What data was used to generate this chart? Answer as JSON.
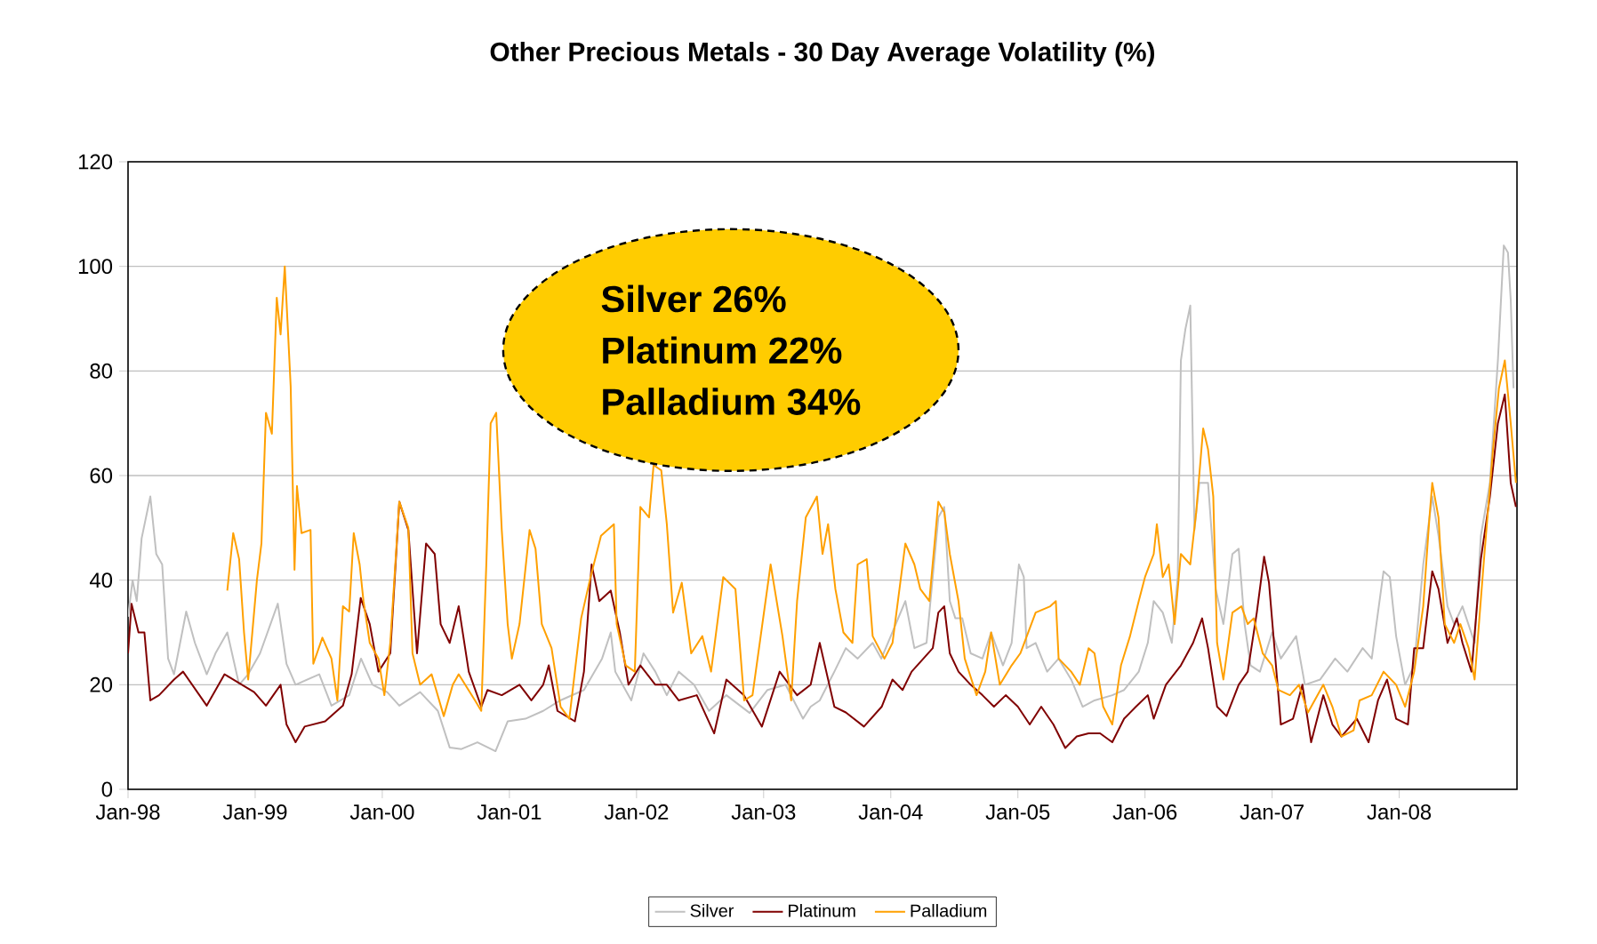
{
  "chart_data": {
    "type": "line",
    "title": "Other Precious Metals - 30 Day Average Volatility (%)",
    "annotations": [
      "Silver 26%",
      "Platinum 22%",
      "Palladium 34%"
    ],
    "ylim": [
      0,
      120
    ],
    "yticks": [
      0,
      20,
      40,
      60,
      80,
      100,
      120
    ],
    "xlim": [
      "1998-01-01",
      "2008-12-05"
    ],
    "xticks": [
      {
        "value": "1998-01-01",
        "label": "Jan-98"
      },
      {
        "value": "1999-01-01",
        "label": "Jan-99"
      },
      {
        "value": "2000-01-01",
        "label": "Jan-00"
      },
      {
        "value": "2001-01-01",
        "label": "Jan-01"
      },
      {
        "value": "2002-01-01",
        "label": "Jan-02"
      },
      {
        "value": "2003-01-01",
        "label": "Jan-03"
      },
      {
        "value": "2004-01-01",
        "label": "Jan-04"
      },
      {
        "value": "2005-01-01",
        "label": "Jan-05"
      },
      {
        "value": "2006-01-01",
        "label": "Jan-06"
      },
      {
        "value": "2007-01-01",
        "label": "Jan-07"
      },
      {
        "value": "2008-01-01",
        "label": "Jan-08"
      }
    ],
    "grid": "y",
    "legend": "bottom",
    "series": [
      {
        "name": "Silver",
        "color": "#c0c0c0",
        "x": [
          "1998-01-01",
          "1998-01-14",
          "1998-01-26",
          "1998-02-09",
          "1998-03-06",
          "1998-03-23",
          "1998-04-09",
          "1998-04-26",
          "1998-05-13",
          "1998-06-17",
          "1998-07-12",
          "1998-08-15",
          "1998-09-09",
          "1998-10-13",
          "1998-11-16",
          "1998-12-12",
          "1999-01-15",
          "1999-03-07",
          "1999-04-01",
          "1999-04-27",
          "1999-07-04",
          "1999-08-08",
          "1999-09-28",
          "1999-11-01",
          "1999-12-04",
          "2000-01-15",
          "2000-02-19",
          "2000-04-19",
          "2000-06-09",
          "2000-07-13",
          "2000-08-16",
          "2000-10-01",
          "2000-11-22",
          "2000-12-27",
          "2001-02-16",
          "2001-04-08",
          "2001-05-27",
          "2001-08-03",
          "2001-09-24",
          "2001-10-19",
          "2001-11-01",
          "2001-12-17",
          "2002-01-21",
          "2002-02-24",
          "2002-03-29",
          "2002-05-02",
          "2002-06-15",
          "2002-07-28",
          "2002-09-16",
          "2002-11-22",
          "2003-01-12",
          "2003-03-05",
          "2003-04-24",
          "2003-05-16",
          "2003-06-11",
          "2003-07-23",
          "2003-08-25",
          "2003-09-28",
          "2003-11-10",
          "2003-12-05",
          "2004-01-01",
          "2004-02-12",
          "2004-03-09",
          "2004-04-13",
          "2004-05-17",
          "2004-06-03",
          "2004-06-19",
          "2004-07-05",
          "2004-07-25",
          "2004-08-18",
          "2004-09-21",
          "2004-10-16",
          "2004-11-19",
          "2004-12-14",
          "2005-01-04",
          "2005-01-18",
          "2005-01-26",
          "2005-02-21",
          "2005-03-26",
          "2005-04-28",
          "2005-06-03",
          "2005-07-06",
          "2005-08-09",
          "2005-09-29",
          "2005-11-02",
          "2005-12-14",
          "2006-01-09",
          "2006-01-26",
          "2006-02-21",
          "2006-03-19",
          "2006-04-05",
          "2006-04-14",
          "2006-04-27",
          "2006-05-11",
          "2006-05-23",
          "2006-06-06",
          "2006-07-01",
          "2006-07-23",
          "2006-08-14",
          "2006-09-09",
          "2006-09-27",
          "2006-10-14",
          "2006-10-31",
          "2006-11-27",
          "2007-01-01",
          "2007-01-26",
          "2007-03-11",
          "2007-04-05",
          "2007-05-19",
          "2007-07-01",
          "2007-08-05",
          "2007-09-18",
          "2007-10-14",
          "2007-11-17",
          "2007-12-05",
          "2007-12-23",
          "2008-01-18",
          "2008-02-13",
          "2008-03-10",
          "2008-04-05",
          "2008-04-23",
          "2008-05-19",
          "2008-06-07",
          "2008-07-01",
          "2008-08-05",
          "2008-08-23",
          "2008-09-18",
          "2008-10-11",
          "2008-10-28",
          "2008-11-09",
          "2008-11-17",
          "2008-11-25"
        ],
        "values": [
          33,
          40,
          36,
          48,
          56,
          45,
          43,
          25,
          22,
          34,
          28,
          22,
          26,
          30,
          20,
          22,
          26,
          35.5,
          24,
          20,
          22,
          16,
          18,
          25,
          20,
          18.6,
          16,
          18.6,
          15,
          8,
          7.7,
          9,
          7.3,
          13,
          13.5,
          15,
          17,
          19,
          25,
          30,
          22.5,
          17,
          26,
          22.5,
          18,
          22.5,
          20,
          15,
          18,
          14.6,
          19,
          20,
          13.5,
          15.8,
          17,
          22.5,
          27,
          25,
          28,
          25,
          29.3,
          36,
          27,
          28,
          52,
          54,
          36,
          32.7,
          32.7,
          26,
          25,
          30,
          23.7,
          28,
          43,
          40.6,
          27,
          28,
          22.5,
          25,
          21,
          15.8,
          17,
          18,
          19,
          22.5,
          28,
          36,
          33.8,
          28,
          40.6,
          82,
          88,
          92.5,
          49.6,
          58.6,
          58.6,
          38.3,
          31.6,
          45,
          46,
          31.6,
          23.7,
          22.5,
          30,
          25,
          29.3,
          20,
          21,
          25,
          22.5,
          27,
          25,
          41.7,
          40.6,
          29.3,
          20,
          23.7,
          43,
          56,
          48.5,
          35,
          31.6,
          35,
          28,
          48.5,
          58.6,
          82,
          104,
          102.6,
          93.6,
          76.7
        ]
      },
      {
        "name": "Platinum",
        "color": "#800000",
        "x": [
          "1998-01-01",
          "1998-01-11",
          "1998-01-31",
          "1998-02-17",
          "1998-03-06",
          "1998-03-31",
          "1998-05-13",
          "1998-06-08",
          "1998-08-15",
          "1998-10-05",
          "1998-11-24",
          "1998-12-29",
          "1999-02-01",
          "1999-03-15",
          "1999-04-01",
          "1999-04-27",
          "1999-05-23",
          "1999-07-21",
          "1999-09-10",
          "1999-10-05",
          "1999-10-31",
          "1999-11-26",
          "1999-12-21",
          "2000-01-24",
          "2000-02-19",
          "2000-03-16",
          "2000-04-10",
          "2000-05-06",
          "2000-05-31",
          "2000-06-17",
          "2000-07-13",
          "2000-08-08",
          "2000-09-06",
          "2000-10-12",
          "2000-10-30",
          "2000-12-10",
          "2001-01-30",
          "2001-03-05",
          "2001-04-08",
          "2001-04-24",
          "2001-05-19",
          "2001-07-08",
          "2001-08-03",
          "2001-08-25",
          "2001-09-16",
          "2001-10-19",
          "2001-11-14",
          "2001-12-09",
          "2002-01-12",
          "2002-02-24",
          "2002-03-29",
          "2002-05-02",
          "2002-06-23",
          "2002-08-12",
          "2002-09-16",
          "2002-11-05",
          "2002-12-27",
          "2003-02-16",
          "2003-04-07",
          "2003-05-16",
          "2003-06-11",
          "2003-07-23",
          "2003-08-25",
          "2003-10-16",
          "2003-12-06",
          "2004-01-06",
          "2004-02-04",
          "2004-03-01",
          "2004-04-04",
          "2004-05-01",
          "2004-05-17",
          "2004-06-03",
          "2004-06-19",
          "2004-07-14",
          "2004-08-18",
          "2004-09-21",
          "2004-10-24",
          "2004-11-27",
          "2005-01-01",
          "2005-02-04",
          "2005-03-09",
          "2005-04-13",
          "2005-05-17",
          "2005-06-19",
          "2005-07-23",
          "2005-08-25",
          "2005-09-29",
          "2005-11-02",
          "2005-12-06",
          "2006-01-09",
          "2006-01-26",
          "2006-03-02",
          "2006-04-14",
          "2006-05-19",
          "2006-06-14",
          "2006-07-01",
          "2006-07-27",
          "2006-08-23",
          "2006-09-27",
          "2006-10-23",
          "2006-11-18",
          "2006-12-09",
          "2006-12-23",
          "2007-01-09",
          "2007-01-26",
          "2007-03-02",
          "2007-03-29",
          "2007-04-23",
          "2007-05-28",
          "2007-06-23",
          "2007-07-19",
          "2007-09-01",
          "2007-10-05",
          "2007-11-01",
          "2007-11-27",
          "2007-12-23",
          "2008-01-26",
          "2008-02-13",
          "2008-03-10",
          "2008-04-05",
          "2008-04-23",
          "2008-05-19",
          "2008-06-15",
          "2008-07-01",
          "2008-07-27",
          "2008-08-23",
          "2008-09-18",
          "2008-10-11",
          "2008-10-31",
          "2008-11-17",
          "2008-12-02"
        ],
        "values": [
          26,
          35.5,
          30,
          30,
          17,
          18,
          21,
          22.5,
          16,
          22,
          20,
          18.6,
          16,
          20,
          12.4,
          9,
          12,
          13,
          16,
          22,
          36.6,
          31.6,
          22.5,
          26,
          55,
          49.6,
          26,
          47,
          45,
          31.6,
          28,
          35,
          22.5,
          15.8,
          19,
          18,
          20,
          17,
          20,
          23.7,
          15,
          13,
          22.5,
          43,
          36,
          38,
          30,
          20,
          23.7,
          20,
          20,
          17,
          18,
          10.7,
          21,
          18,
          12,
          22.5,
          18,
          20,
          28,
          15.8,
          14.7,
          12,
          15.8,
          21,
          19,
          22.5,
          25,
          27,
          33.8,
          35,
          26,
          22.5,
          20,
          18,
          15.8,
          18,
          15.8,
          12.4,
          15.8,
          12.4,
          7.9,
          10.1,
          10.7,
          10.7,
          9,
          13.5,
          15.8,
          18,
          13.5,
          20,
          23.7,
          28,
          32.7,
          27,
          15.8,
          14,
          20,
          22.5,
          33.8,
          44.5,
          39.5,
          26,
          12.4,
          13.5,
          20,
          9,
          18,
          12.4,
          10.1,
          13.5,
          9,
          17,
          21,
          13.5,
          12.4,
          27,
          27,
          41.7,
          38.3,
          28,
          32.7,
          28,
          22.5,
          44,
          56,
          70,
          75.5,
          58.6,
          54
        ]
      },
      {
        "name": "Palladium",
        "color": "#ffa000",
        "x": [
          "1998-10-13",
          "1998-10-30",
          "1998-11-16",
          "1998-11-30",
          "1998-12-12",
          "1999-01-06",
          "1999-01-19",
          "1999-02-01",
          "1999-02-18",
          "1999-03-04",
          "1999-03-15",
          "1999-03-27",
          "1999-04-13",
          "1999-04-24",
          "1999-05-01",
          "1999-05-14",
          "1999-06-09",
          "1999-06-17",
          "1999-07-13",
          "1999-08-08",
          "1999-08-25",
          "1999-09-10",
          "1999-09-28",
          "1999-10-11",
          "1999-10-28",
          "1999-11-08",
          "1999-11-26",
          "1999-12-21",
          "2000-01-07",
          "2000-01-24",
          "2000-02-19",
          "2000-03-16",
          "2000-03-28",
          "2000-04-19",
          "2000-05-22",
          "2000-06-26",
          "2000-07-22",
          "2000-08-08",
          "2000-09-24",
          "2000-10-12",
          "2000-10-27",
          "2000-11-08",
          "2000-11-24",
          "2000-12-10",
          "2000-12-27",
          "2001-01-08",
          "2001-01-30",
          "2001-02-28",
          "2001-03-17",
          "2001-04-04",
          "2001-05-02",
          "2001-05-28",
          "2001-06-22",
          "2001-07-26",
          "2001-08-22",
          "2001-09-21",
          "2001-10-28",
          "2001-11-05",
          "2001-12-01",
          "2001-12-27",
          "2002-01-12",
          "2002-02-06",
          "2002-02-19",
          "2002-03-13",
          "2002-03-29",
          "2002-04-16",
          "2002-05-11",
          "2002-06-07",
          "2002-07-09",
          "2002-08-03",
          "2002-09-07",
          "2002-10-12",
          "2002-11-06",
          "2002-11-30",
          "2003-01-21",
          "2003-02-24",
          "2003-03-21",
          "2003-04-07",
          "2003-05-02",
          "2003-06-03",
          "2003-06-19",
          "2003-07-05",
          "2003-07-26",
          "2003-08-18",
          "2003-09-13",
          "2003-09-28",
          "2003-10-24",
          "2003-11-10",
          "2003-12-14",
          "2004-01-06",
          "2004-02-12",
          "2004-03-09",
          "2004-03-26",
          "2004-04-21",
          "2004-05-17",
          "2004-06-03",
          "2004-06-19",
          "2004-07-14",
          "2004-08-01",
          "2004-09-04",
          "2004-09-29",
          "2004-10-16",
          "2004-11-10",
          "2004-12-14",
          "2005-01-08",
          "2005-02-21",
          "2005-04-04",
          "2005-04-20",
          "2005-04-28",
          "2005-06-03",
          "2005-06-28",
          "2005-07-23",
          "2005-08-09",
          "2005-09-03",
          "2005-09-29",
          "2005-10-24",
          "2005-11-19",
          "2005-12-14",
          "2006-01-01",
          "2006-01-26",
          "2006-02-04",
          "2006-02-21",
          "2006-03-10",
          "2006-03-27",
          "2006-04-14",
          "2006-05-11",
          "2006-05-28",
          "2006-06-17",
          "2006-07-01",
          "2006-07-16",
          "2006-07-27",
          "2006-08-14",
          "2006-09-09",
          "2006-10-05",
          "2006-10-23",
          "2006-11-09",
          "2006-12-05",
          "2007-01-01",
          "2007-01-19",
          "2007-02-21",
          "2007-03-19",
          "2007-04-14",
          "2007-05-28",
          "2007-06-23",
          "2007-07-19",
          "2007-08-23",
          "2007-09-09",
          "2007-10-14",
          "2007-11-17",
          "2007-12-23",
          "2008-01-18",
          "2008-02-13",
          "2008-03-10",
          "2008-03-28",
          "2008-04-05",
          "2008-04-23",
          "2008-05-11",
          "2008-06-07",
          "2008-06-25",
          "2008-07-19",
          "2008-08-05",
          "2008-09-01",
          "2008-09-27",
          "2008-10-14",
          "2008-10-31",
          "2008-11-17",
          "2008-12-02"
        ],
        "values": [
          38,
          49,
          44,
          30,
          21,
          40,
          47,
          72,
          68,
          94,
          87,
          100,
          77,
          42,
          58,
          49,
          49.6,
          24,
          29,
          25,
          17,
          35,
          34,
          49,
          43,
          36,
          28,
          25,
          18,
          28,
          55,
          50,
          26,
          20,
          22,
          14,
          20,
          22,
          17,
          15,
          44,
          70,
          72,
          49.6,
          31.6,
          25,
          31.6,
          49.6,
          46,
          31.6,
          27,
          15.8,
          13.5,
          32.7,
          40.6,
          48.5,
          50.7,
          31.6,
          23.7,
          22.5,
          54,
          52,
          62,
          61,
          50.7,
          33.8,
          39.5,
          26,
          29.3,
          22.5,
          40.6,
          38.3,
          17,
          18,
          43,
          29.3,
          17,
          36,
          52,
          56,
          45,
          50.7,
          38.3,
          30,
          28,
          43,
          44,
          29.3,
          25,
          28,
          47,
          43,
          38.3,
          36,
          55,
          53,
          45,
          36,
          25,
          18,
          22.5,
          30,
          20,
          23.7,
          26,
          33.8,
          35,
          36,
          25,
          22.5,
          20,
          27,
          26,
          15.8,
          12.4,
          23.7,
          29.3,
          36,
          40.6,
          45,
          50.7,
          40.6,
          43,
          31.6,
          45,
          43,
          53,
          69,
          65,
          56,
          28,
          21,
          33.8,
          35,
          31.6,
          32.7,
          26,
          23.7,
          19,
          18,
          20,
          14.7,
          20,
          15.8,
          10.1,
          11.3,
          17,
          18,
          22.5,
          20,
          15.8,
          22.5,
          35,
          52,
          58.6,
          52,
          31.6,
          28,
          31.6,
          27,
          21,
          44,
          65,
          76.7,
          82,
          70,
          58.6
        ]
      }
    ]
  }
}
